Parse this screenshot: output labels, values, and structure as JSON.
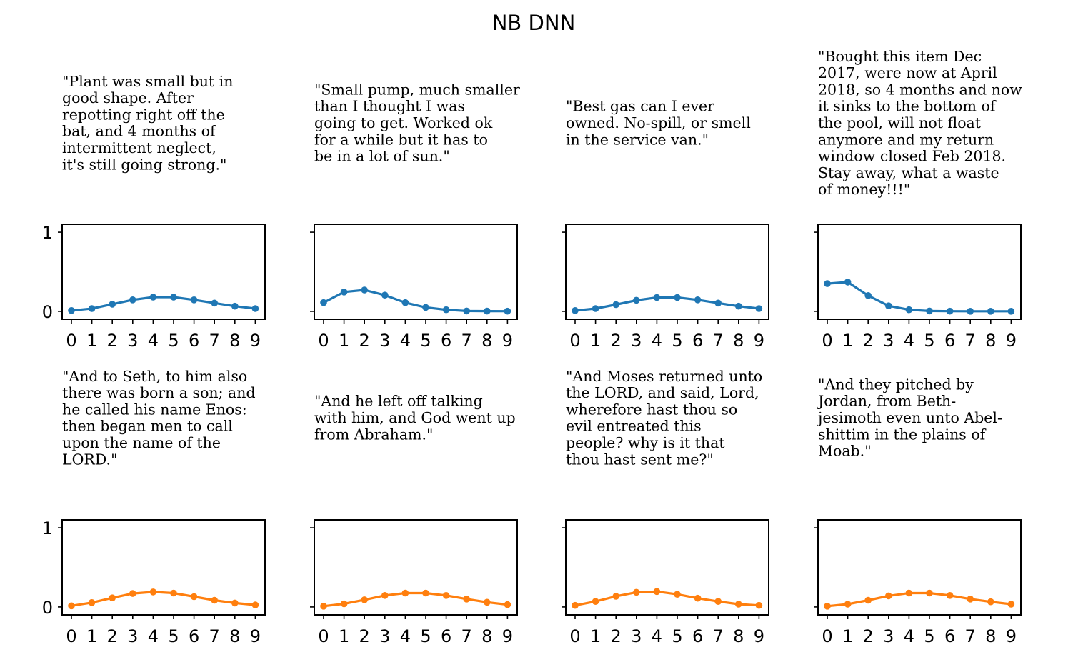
{
  "title": "NB DNN",
  "colors": {
    "series_a": "#1f77b4",
    "series_b": "#ff7f0e"
  },
  "chart_data": [
    {
      "type": "line",
      "series": "a",
      "caption": [
        "\"Plant was small but in",
        "good shape. After",
        "repotting right off the",
        "bat, and 4 months of",
        "intermittent neglect,",
        "it's still going strong.\""
      ],
      "x": [
        0,
        1,
        2,
        3,
        4,
        5,
        6,
        7,
        8,
        9
      ],
      "values": [
        0.01,
        0.035,
        0.09,
        0.145,
        0.18,
        0.18,
        0.145,
        0.105,
        0.065,
        0.035
      ],
      "ylim": [
        -0.1,
        1.1
      ],
      "yticks": [
        0,
        1
      ],
      "show_yticklabels": true
    },
    {
      "type": "line",
      "series": "a",
      "caption": [
        "\"Small pump, much smaller",
        "than I thought I was",
        "going to get.  Worked ok",
        "for a while but it has to",
        "be in a lot of sun.\""
      ],
      "x": [
        0,
        1,
        2,
        3,
        4,
        5,
        6,
        7,
        8,
        9
      ],
      "values": [
        0.11,
        0.245,
        0.27,
        0.205,
        0.11,
        0.05,
        0.02,
        0.005,
        0.003,
        0.002
      ],
      "ylim": [
        -0.1,
        1.1
      ],
      "yticks": [
        0,
        1
      ],
      "show_yticklabels": false
    },
    {
      "type": "line",
      "series": "a",
      "caption": [
        "\"Best gas can I ever",
        "owned. No-spill, or smell",
        "in the service van.\""
      ],
      "x": [
        0,
        1,
        2,
        3,
        4,
        5,
        6,
        7,
        8,
        9
      ],
      "values": [
        0.01,
        0.035,
        0.085,
        0.14,
        0.175,
        0.175,
        0.145,
        0.105,
        0.065,
        0.035
      ],
      "ylim": [
        -0.1,
        1.1
      ],
      "yticks": [
        0,
        1
      ],
      "show_yticklabels": false
    },
    {
      "type": "line",
      "series": "a",
      "caption": [
        "\"Bought this item Dec",
        "2017, were now at April",
        "2018, so 4 months and now",
        "it sinks to the bottom of",
        "the pool, will not float",
        "anymore and my return",
        "window closed Feb 2018.",
        "Stay away, what a waste",
        "of money!!!\""
      ],
      "x": [
        0,
        1,
        2,
        3,
        4,
        5,
        6,
        7,
        8,
        9
      ],
      "values": [
        0.35,
        0.37,
        0.2,
        0.07,
        0.02,
        0.005,
        0.002,
        0.001,
        0.001,
        0.001
      ],
      "ylim": [
        -0.1,
        1.1
      ],
      "yticks": [
        0,
        1
      ],
      "show_yticklabels": false
    },
    {
      "type": "line",
      "series": "b",
      "caption": [
        "\"And to Seth, to him also",
        "there was born a son; and",
        "he called his name Enos:",
        "then began men to call",
        "upon the name of the",
        "LORD.\""
      ],
      "x": [
        0,
        1,
        2,
        3,
        4,
        5,
        6,
        7,
        8,
        9
      ],
      "values": [
        0.015,
        0.055,
        0.115,
        0.17,
        0.19,
        0.175,
        0.13,
        0.085,
        0.05,
        0.025
      ],
      "ylim": [
        -0.1,
        1.1
      ],
      "yticks": [
        0,
        1
      ],
      "show_yticklabels": true
    },
    {
      "type": "line",
      "series": "b",
      "caption": [
        "\"And he left off talking",
        "with him, and God went up",
        "from Abraham.\""
      ],
      "x": [
        0,
        1,
        2,
        3,
        4,
        5,
        6,
        7,
        8,
        9
      ],
      "values": [
        0.01,
        0.04,
        0.09,
        0.145,
        0.175,
        0.175,
        0.145,
        0.1,
        0.06,
        0.03
      ],
      "ylim": [
        -0.1,
        1.1
      ],
      "yticks": [
        0,
        1
      ],
      "show_yticklabels": false
    },
    {
      "type": "line",
      "series": "b",
      "caption": [
        "\"And Moses returned unto",
        "the LORD, and said, Lord,",
        "wherefore hast thou so",
        "evil entreated this",
        "people? why is it that",
        "thou hast sent me?\""
      ],
      "x": [
        0,
        1,
        2,
        3,
        4,
        5,
        6,
        7,
        8,
        9
      ],
      "values": [
        0.02,
        0.07,
        0.135,
        0.185,
        0.195,
        0.16,
        0.11,
        0.07,
        0.035,
        0.02
      ],
      "ylim": [
        -0.1,
        1.1
      ],
      "yticks": [
        0,
        1
      ],
      "show_yticklabels": false
    },
    {
      "type": "line",
      "series": "b",
      "caption": [
        "\"And they pitched by",
        "Jordan, from Beth-",
        "jesimoth even unto Abel-",
        "shittim in the plains of",
        "Moab.\""
      ],
      "x": [
        0,
        1,
        2,
        3,
        4,
        5,
        6,
        7,
        8,
        9
      ],
      "values": [
        0.01,
        0.035,
        0.085,
        0.14,
        0.175,
        0.175,
        0.145,
        0.1,
        0.065,
        0.035
      ],
      "ylim": [
        -0.1,
        1.1
      ],
      "yticks": [
        0,
        1
      ],
      "show_yticklabels": false
    }
  ]
}
